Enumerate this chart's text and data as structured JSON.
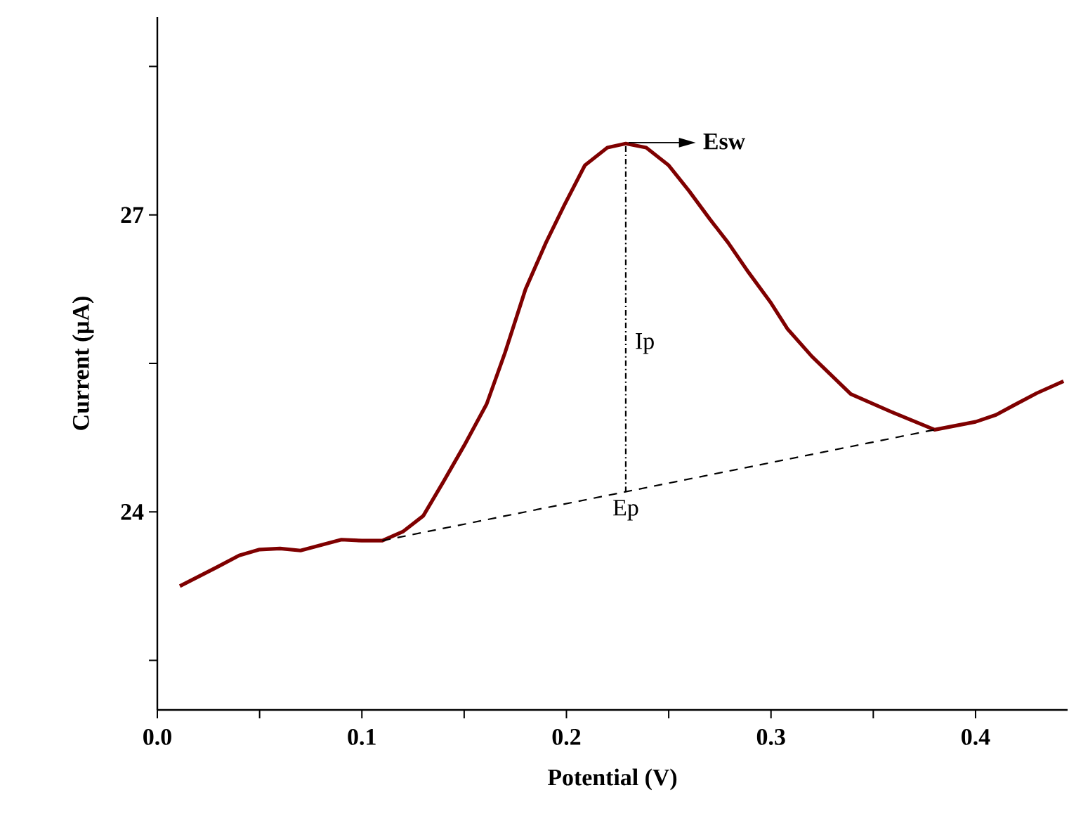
{
  "chart_data": {
    "type": "line",
    "xlabel": "Potential (V)",
    "ylabel": "Current (μA)",
    "xlim": [
      0,
      0.445
    ],
    "ylim": [
      22,
      29
    ],
    "xticks": [
      {
        "value": 0,
        "label": "0.0"
      },
      {
        "value": 0.05,
        "label": null
      },
      {
        "value": 0.1,
        "label": "0.1"
      },
      {
        "value": 0.15,
        "label": null
      },
      {
        "value": 0.2,
        "label": "0.2"
      },
      {
        "value": 0.25,
        "label": null
      },
      {
        "value": 0.3,
        "label": "0.3"
      },
      {
        "value": 0.35,
        "label": null
      },
      {
        "value": 0.4,
        "label": "0.4"
      }
    ],
    "yticks": [
      {
        "value": 22.5,
        "label": null
      },
      24,
      {
        "value": 25.5,
        "label": null
      },
      27,
      {
        "value": 28.5,
        "label": null
      }
    ],
    "series": [
      {
        "color": "#7f0000",
        "line_style": "solid",
        "x": [
          0.011,
          0.029,
          0.04,
          0.05,
          0.06,
          0.07,
          0.079,
          0.09,
          0.1,
          0.11,
          0.12,
          0.13,
          0.14,
          0.15,
          0.161,
          0.17,
          0.18,
          0.19,
          0.199,
          0.209,
          0.22,
          0.229,
          0.239,
          0.25,
          0.26,
          0.27,
          0.279,
          0.289,
          0.3,
          0.308,
          0.32,
          0.339,
          0.36,
          0.38,
          0.4,
          0.41,
          0.419,
          0.43,
          0.443
        ],
        "values": [
          23.25,
          23.44,
          23.56,
          23.62,
          23.63,
          23.61,
          23.66,
          23.72,
          23.71,
          23.71,
          23.8,
          23.96,
          24.31,
          24.67,
          25.09,
          25.61,
          26.25,
          26.72,
          27.1,
          27.5,
          27.68,
          27.72,
          27.68,
          27.5,
          27.24,
          26.96,
          26.72,
          26.42,
          26.11,
          25.85,
          25.57,
          25.19,
          25.0,
          24.83,
          24.91,
          24.98,
          25.08,
          25.2,
          25.32
        ]
      },
      {
        "color": "#000000",
        "line_style": "dashed",
        "x": [
          0.11,
          0.38
        ],
        "values": [
          23.71,
          24.83
        ]
      },
      {
        "color": "#000000",
        "line_style": "dotted",
        "x": [
          0.229,
          0.229
        ],
        "values": [
          24.2,
          27.72
        ]
      }
    ],
    "annotations": [
      "Esw",
      {
        "text": "Ip",
        "x": 0.229,
        "y": 25.7
      },
      {
        "text": "Ep",
        "x": 0.229,
        "y": 24.2
      }
    ],
    "grid": false,
    "marker": "none"
  }
}
